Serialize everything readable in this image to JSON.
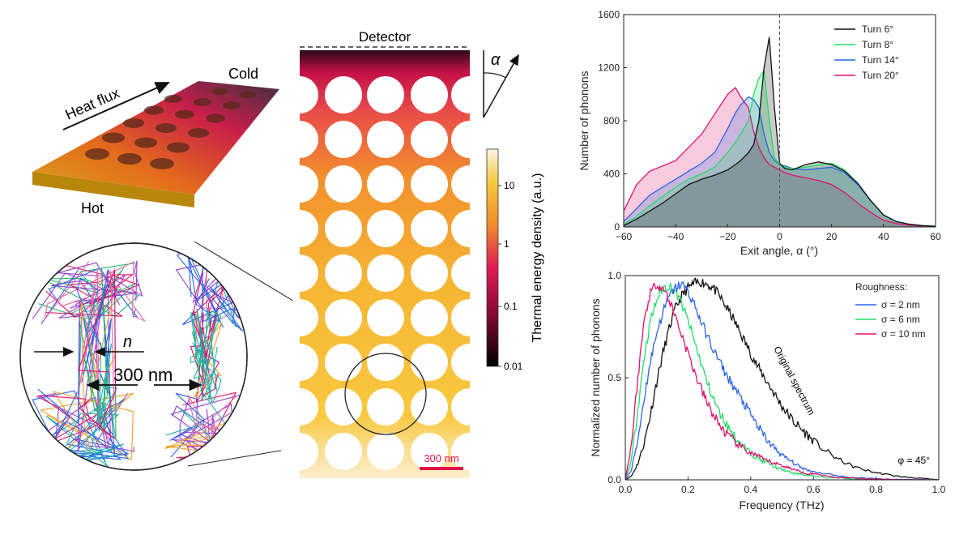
{
  "membrane": {
    "heat_flux_label": "Heat flux",
    "cold_label": "Cold",
    "hot_label": "Hot",
    "neck_label": "n",
    "pitch_label": "300 nm"
  },
  "map": {
    "detector_label": "Detector",
    "angle_symbol": "α",
    "scalebar_label": "300 nm",
    "colorbar_label": "Thermal energy density (a.u.)",
    "colorbar_ticks": [
      "10",
      "1",
      "0.1",
      "0.01"
    ]
  },
  "chart_data": [
    {
      "type": "area",
      "xlabel": "Exit angle, α (°)",
      "ylabel": "Number of phonons",
      "xlim": [
        -60,
        60
      ],
      "ylim": [
        0,
        1600
      ],
      "x_ticks": [
        "−60",
        "−40",
        "−20",
        "0",
        "20",
        "40",
        "60"
      ],
      "y_ticks": [
        "0",
        "400",
        "800",
        "1200",
        "1600"
      ],
      "legend_position": "top-right",
      "x": [
        -60,
        -55,
        -50,
        -45,
        -40,
        -35,
        -30,
        -25,
        -20,
        -17,
        -15,
        -12,
        -10,
        -8,
        -6,
        -4,
        -2,
        0,
        2,
        5,
        10,
        15,
        20,
        25,
        30,
        35,
        40,
        45,
        50,
        55,
        60
      ],
      "series": [
        {
          "name": "Turn 6°",
          "color": "#111111",
          "values": [
            10,
            60,
            120,
            180,
            250,
            320,
            360,
            390,
            430,
            470,
            500,
            560,
            620,
            800,
            1200,
            1430,
            900,
            480,
            440,
            430,
            470,
            490,
            470,
            420,
            330,
            200,
            90,
            40,
            20,
            10,
            5
          ]
        },
        {
          "name": "Turn 8°",
          "color": "#22dd66",
          "values": [
            20,
            80,
            160,
            230,
            300,
            360,
            400,
            450,
            560,
            640,
            700,
            800,
            1000,
            1120,
            1180,
            800,
            520,
            470,
            450,
            440,
            450,
            470,
            480,
            430,
            330,
            200,
            90,
            40,
            20,
            10,
            5
          ]
        },
        {
          "name": "Turn 14°",
          "color": "#2a63e8",
          "values": [
            40,
            140,
            240,
            300,
            360,
            420,
            480,
            560,
            740,
            860,
            920,
            980,
            960,
            900,
            700,
            560,
            500,
            470,
            460,
            440,
            430,
            440,
            450,
            410,
            320,
            200,
            90,
            40,
            20,
            10,
            5
          ]
        },
        {
          "name": "Turn 20°",
          "color": "#e0106a",
          "values": [
            120,
            320,
            420,
            460,
            500,
            600,
            700,
            850,
            1000,
            1050,
            980,
            900,
            720,
            600,
            520,
            470,
            450,
            430,
            410,
            390,
            370,
            350,
            320,
            260,
            180,
            110,
            50,
            25,
            12,
            6,
            3
          ]
        }
      ]
    },
    {
      "type": "line",
      "xlabel": "Frequency (THz)",
      "ylabel": "Normalized number of phonons",
      "xlim": [
        0,
        1.0
      ],
      "ylim": [
        0,
        1.0
      ],
      "x_ticks": [
        "0.0",
        "0.2",
        "0.4",
        "0.6",
        "0.8",
        "1.0"
      ],
      "y_ticks": [
        "0.0",
        "0.5",
        "1.0"
      ],
      "legend_title": "Roughness:",
      "legend_position": "top-right",
      "annotation": "Original spectrum",
      "corner_note": "φ = 45°",
      "x": [
        0.0,
        0.02,
        0.04,
        0.06,
        0.08,
        0.1,
        0.12,
        0.14,
        0.16,
        0.18,
        0.2,
        0.22,
        0.24,
        0.26,
        0.28,
        0.3,
        0.32,
        0.34,
        0.36,
        0.38,
        0.4,
        0.42,
        0.44,
        0.46,
        0.48,
        0.5,
        0.52,
        0.54,
        0.56,
        0.58,
        0.6,
        0.64,
        0.68,
        0.72,
        0.76,
        0.8,
        0.84,
        0.88,
        0.92,
        0.96,
        1.0
      ],
      "series": [
        {
          "name": "σ = 2 nm",
          "color": "#2a63e8",
          "values": [
            0,
            0.05,
            0.2,
            0.4,
            0.58,
            0.72,
            0.82,
            0.9,
            0.94,
            0.96,
            0.92,
            0.86,
            0.78,
            0.71,
            0.64,
            0.58,
            0.52,
            0.47,
            0.42,
            0.37,
            0.32,
            0.27,
            0.22,
            0.18,
            0.15,
            0.12,
            0.1,
            0.08,
            0.06,
            0.05,
            0.04,
            0.03,
            0.02,
            0.01,
            0.01,
            0.005,
            0.003,
            0.002,
            0.001,
            0.0,
            0.0
          ]
        },
        {
          "name": "σ = 6 nm",
          "color": "#22dd66",
          "values": [
            0,
            0.1,
            0.35,
            0.6,
            0.78,
            0.88,
            0.94,
            0.95,
            0.92,
            0.86,
            0.78,
            0.68,
            0.58,
            0.48,
            0.4,
            0.33,
            0.28,
            0.23,
            0.19,
            0.16,
            0.13,
            0.11,
            0.09,
            0.08,
            0.06,
            0.05,
            0.04,
            0.03,
            0.03,
            0.02,
            0.02,
            0.01,
            0.01,
            0.005,
            0.003,
            0.002,
            0.001,
            0.0,
            0.0,
            0.0,
            0.0
          ]
        },
        {
          "name": "σ = 10 nm",
          "color": "#e0106a",
          "values": [
            0,
            0.18,
            0.5,
            0.78,
            0.92,
            0.96,
            0.94,
            0.88,
            0.8,
            0.71,
            0.62,
            0.53,
            0.45,
            0.38,
            0.32,
            0.27,
            0.23,
            0.2,
            0.17,
            0.15,
            0.13,
            0.12,
            0.1,
            0.09,
            0.08,
            0.07,
            0.06,
            0.05,
            0.04,
            0.03,
            0.03,
            0.02,
            0.01,
            0.01,
            0.005,
            0.003,
            0.002,
            0.001,
            0.0,
            0.0,
            0.0
          ]
        },
        {
          "name": "",
          "color": "#111111",
          "values": [
            0,
            0.02,
            0.08,
            0.18,
            0.32,
            0.48,
            0.62,
            0.74,
            0.84,
            0.9,
            0.94,
            0.96,
            0.97,
            0.96,
            0.94,
            0.9,
            0.85,
            0.8,
            0.74,
            0.68,
            0.62,
            0.56,
            0.51,
            0.46,
            0.41,
            0.36,
            0.32,
            0.28,
            0.25,
            0.22,
            0.19,
            0.14,
            0.1,
            0.07,
            0.05,
            0.035,
            0.025,
            0.015,
            0.01,
            0.005,
            0.0
          ]
        }
      ]
    }
  ]
}
